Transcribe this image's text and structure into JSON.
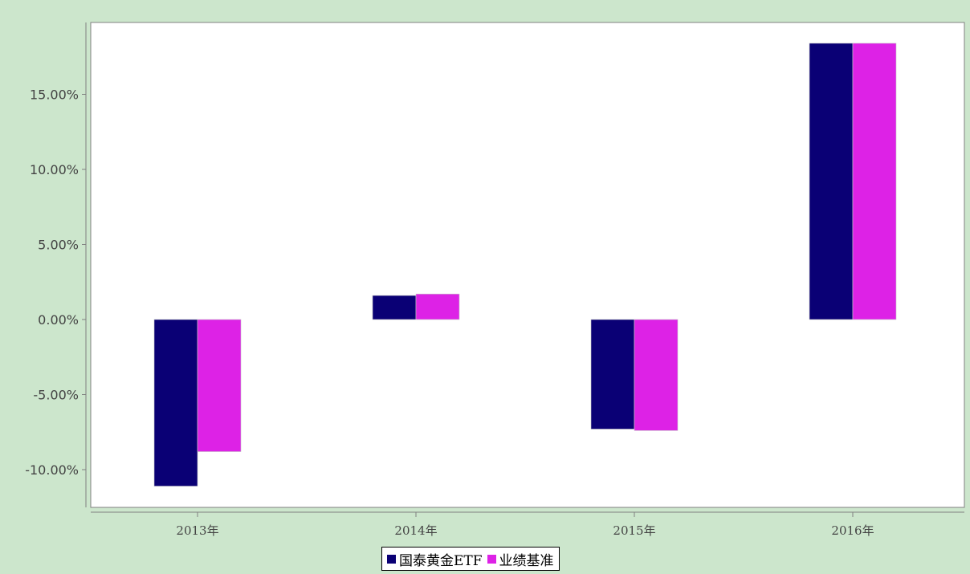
{
  "chart_data": {
    "type": "bar",
    "categories": [
      "2013年",
      "2014年",
      "2015年",
      "2016年"
    ],
    "series": [
      {
        "name": "国泰黄金ETF",
        "values": [
          -11.1,
          1.6,
          -7.3,
          18.4
        ],
        "color": "#0a0075"
      },
      {
        "name": "业绩基准",
        "values": [
          -8.8,
          1.7,
          -7.4,
          18.4
        ],
        "color": "#dd22e6"
      }
    ],
    "y_ticks": [
      "-10.00%",
      "-5.00%",
      "0.00%",
      "5.00%",
      "10.00%",
      "15.00%"
    ],
    "y_tick_values": [
      -10,
      -5,
      0,
      5,
      10,
      15
    ],
    "ylim": [
      -12.5,
      20
    ],
    "grid": false,
    "legend_position": "bottom-center",
    "title": "",
    "xlabel": "",
    "ylabel": ""
  }
}
